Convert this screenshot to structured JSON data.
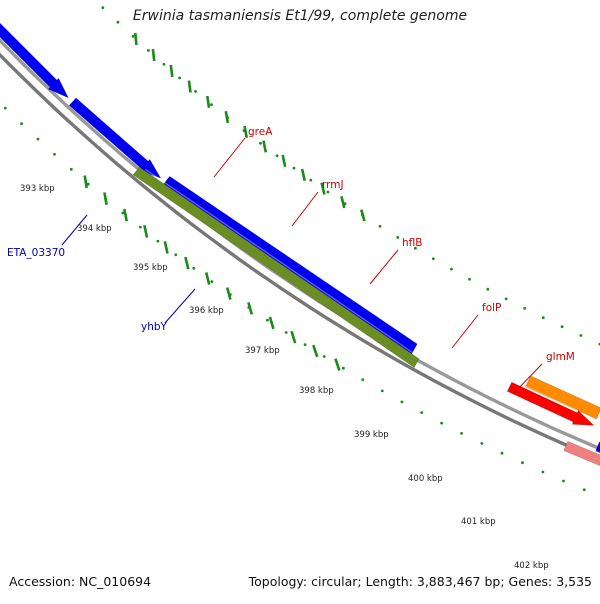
{
  "title": "Erwinia tasmaniensis Et1/99, complete genome",
  "footer": {
    "accession": "Accession: NC_010694",
    "topology": "Topology: circular; Length: 3,883,467 bp; Genes: 3,535"
  },
  "scale_labels": [
    "393 kbp",
    "394 kbp",
    "395 kbp",
    "396 kbp",
    "397 kbp",
    "398 kbp",
    "399 kbp",
    "400 kbp",
    "401 kbp",
    "402 kbp"
  ],
  "gene_labels": {
    "greA": "greA",
    "rrmJ": "rrmJ",
    "hflB": "hflB",
    "folP": "folP",
    "glmM": "glmM",
    "eta": "ETA_03370",
    "yhbY": "yhbY"
  },
  "colors": {
    "backbone": "#888888",
    "tick": "#1a8a1a",
    "label_red": "#cc0000",
    "label_blue": "#0000aa",
    "red": "#ff0000",
    "blue": "#0000ee",
    "olive": "#6b8e23",
    "orange": "#ff8c00",
    "pink": "#f08080",
    "khaki": "#c8be78",
    "cyan": "#00cccc",
    "lime": "#99ee22",
    "gray": "#666666",
    "lightpink": "#ffaadd"
  }
}
